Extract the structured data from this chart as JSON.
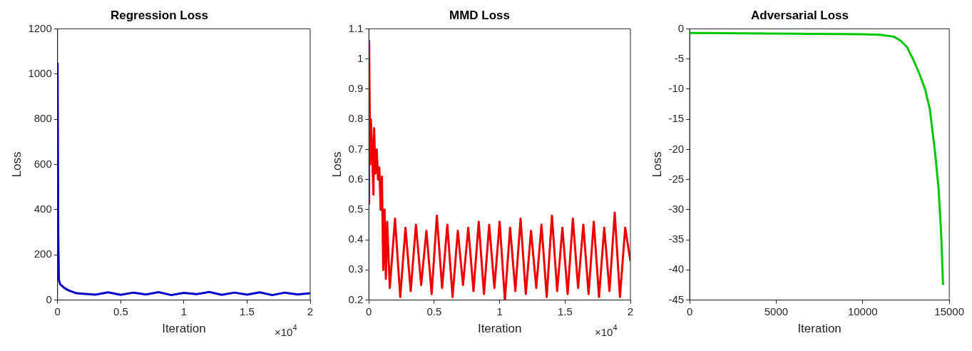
{
  "chart_data": [
    {
      "type": "line",
      "title": "Regression Loss",
      "xlabel": "Iteration",
      "ylabel": "Loss",
      "annotations": [
        "×10$^{4}$"
      ],
      "xlim": [
        0,
        2
      ],
      "xticks": [
        0,
        0.5,
        1,
        1.5,
        2
      ],
      "ylim": [
        0,
        1200
      ],
      "yticks": [
        0,
        200,
        400,
        600,
        800,
        1000,
        1200
      ],
      "grid": false,
      "legend": false,
      "marker": "none",
      "line_style": "solid",
      "series": [
        {
          "color": "#0000c8",
          "x": [
            0,
            0.005,
            0.01,
            0.02,
            0.05,
            0.08,
            0.1,
            0.15,
            0.2,
            0.3,
            0.4,
            0.5,
            0.6,
            0.7,
            0.8,
            0.9,
            1.0,
            1.1,
            1.2,
            1.3,
            1.4,
            1.5,
            1.6,
            1.7,
            1.8,
            1.9,
            2.0
          ],
          "values": [
            1050,
            300,
            90,
            70,
            55,
            45,
            40,
            30,
            28,
            24,
            34,
            23,
            33,
            25,
            35,
            22,
            32,
            26,
            36,
            23,
            33,
            24,
            34,
            22,
            33,
            25,
            30
          ]
        }
      ]
    },
    {
      "type": "line",
      "title": "MMD Loss",
      "xlabel": "Iteration",
      "ylabel": "Loss",
      "annotations": [
        "×10$^{4}$"
      ],
      "xlim": [
        0,
        2
      ],
      "xticks": [
        0,
        0.5,
        1,
        1.5,
        2
      ],
      "ylim": [
        0.2,
        1.1
      ],
      "yticks": [
        0.2,
        0.3,
        0.4,
        0.5,
        0.6,
        0.7,
        0.8,
        0.9,
        1,
        1.1
      ],
      "grid": false,
      "legend": false,
      "marker": "none",
      "line_style": "solid",
      "series": [
        {
          "color": "#f00000",
          "x": [
            0,
            0.002,
            0.01,
            0.015,
            0.025,
            0.035,
            0.04,
            0.05,
            0.06,
            0.07,
            0.08,
            0.09,
            0.1,
            0.105,
            0.11,
            0.12,
            0.13,
            0.14,
            0.16,
            0.2,
            0.24,
            0.28,
            0.32,
            0.36,
            0.4,
            0.44,
            0.48,
            0.52,
            0.56,
            0.6,
            0.64,
            0.68,
            0.72,
            0.76,
            0.8,
            0.84,
            0.88,
            0.92,
            0.96,
            1.0,
            1.04,
            1.08,
            1.12,
            1.16,
            1.2,
            1.24,
            1.28,
            1.32,
            1.36,
            1.4,
            1.44,
            1.48,
            1.52,
            1.56,
            1.6,
            1.64,
            1.68,
            1.72,
            1.76,
            1.8,
            1.84,
            1.88,
            1.92,
            1.96,
            2.0
          ],
          "values": [
            0.52,
            1.06,
            0.65,
            0.8,
            0.7,
            0.55,
            0.77,
            0.62,
            0.7,
            0.6,
            0.64,
            0.5,
            0.61,
            0.45,
            0.3,
            0.5,
            0.27,
            0.46,
            0.24,
            0.47,
            0.21,
            0.44,
            0.23,
            0.45,
            0.25,
            0.43,
            0.22,
            0.48,
            0.24,
            0.45,
            0.21,
            0.43,
            0.25,
            0.44,
            0.23,
            0.46,
            0.22,
            0.45,
            0.24,
            0.46,
            0.2,
            0.44,
            0.23,
            0.47,
            0.22,
            0.43,
            0.24,
            0.45,
            0.21,
            0.48,
            0.23,
            0.44,
            0.22,
            0.47,
            0.24,
            0.45,
            0.22,
            0.46,
            0.21,
            0.44,
            0.23,
            0.49,
            0.21,
            0.44,
            0.33
          ]
        }
      ]
    },
    {
      "type": "line",
      "title": "Adversarial Loss",
      "xlabel": "Iteration",
      "ylabel": "Loss",
      "xlim": [
        0,
        15000
      ],
      "xticks": [
        0,
        5000,
        10000,
        15000
      ],
      "ylim": [
        -45,
        0
      ],
      "yticks": [
        -45,
        -40,
        -35,
        -30,
        -25,
        -20,
        -15,
        -10,
        -5,
        0
      ],
      "grid": false,
      "legend": false,
      "marker": "none",
      "line_style": "solid",
      "series": [
        {
          "color": "#00c800",
          "x": [
            0,
            6000,
            10000,
            11000,
            11800,
            12200,
            12550,
            12900,
            13280,
            13600,
            13870,
            14160,
            14380,
            14530,
            14640
          ],
          "values": [
            -0.7,
            -0.8,
            -0.9,
            -1.0,
            -1.3,
            -2,
            -3,
            -5,
            -7.5,
            -10,
            -13.2,
            -20,
            -26.4,
            -33.9,
            -42.5
          ]
        }
      ]
    }
  ]
}
